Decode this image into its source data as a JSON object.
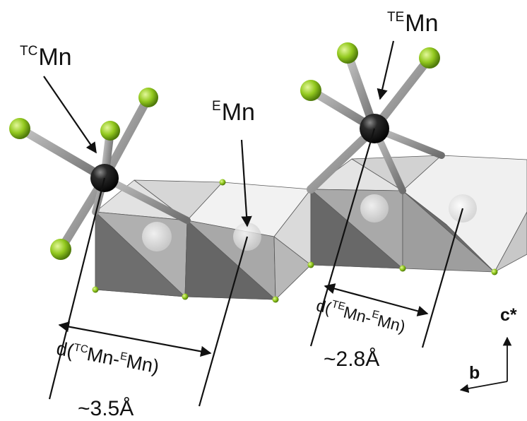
{
  "labels": {
    "tc_mn": {
      "sup": "TC",
      "main": "Mn"
    },
    "e_mn": {
      "sup": "E",
      "main": "Mn"
    },
    "te_mn": {
      "sup": "TE",
      "main": "Mn"
    }
  },
  "distances": {
    "tc_e": {
      "prefix": "d(",
      "sup1": "TC",
      "mid": "Mn-",
      "sup2": "E",
      "suffix": "Mn)",
      "value": "~3.5Å"
    },
    "te_e": {
      "prefix": "d(",
      "sup1": "TE",
      "mid": "Mn-",
      "sup2": "E",
      "suffix": "Mn)",
      "value": "~2.8Å"
    }
  },
  "axes": {
    "c": "c*",
    "b": "b"
  },
  "colors": {
    "ligand": "#8fc81e",
    "ligand_highlight": "#d8f27a",
    "metal": "#222222",
    "bond": "#8c8c8c",
    "face_light": "#ececec",
    "face_mid": "#bdbdbd",
    "face_dark": "#6b6b6b"
  }
}
